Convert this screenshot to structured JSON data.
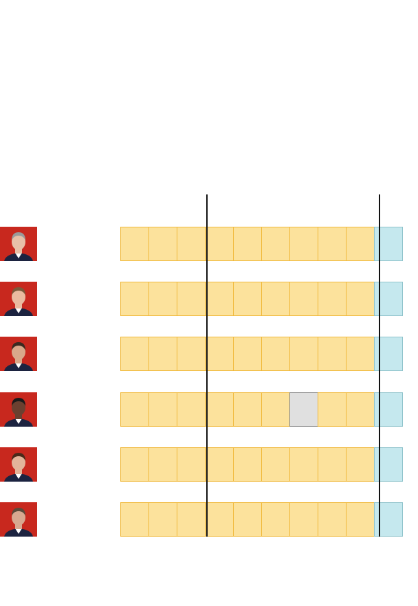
{
  "colors": {
    "avatar_bg": "#c8281e",
    "yes": {
      "fill": "#fce29c",
      "border": "#f0b83a"
    },
    "absent": {
      "fill": "#e0e0e0",
      "border": "#888888"
    },
    "other": {
      "fill": "#c5e8ee",
      "border": "#8fc3cb"
    }
  },
  "chart_data": {
    "type": "table",
    "rows": [
      {
        "cells": [
          "yes",
          "yes",
          "yes",
          "yes",
          "yes",
          "yes",
          "yes",
          "yes",
          "yes",
          "other"
        ]
      },
      {
        "cells": [
          "yes",
          "yes",
          "yes",
          "yes",
          "yes",
          "yes",
          "yes",
          "yes",
          "yes",
          "other"
        ]
      },
      {
        "cells": [
          "yes",
          "yes",
          "yes",
          "yes",
          "yes",
          "yes",
          "yes",
          "yes",
          "yes",
          "other"
        ]
      },
      {
        "cells": [
          "yes",
          "yes",
          "yes",
          "yes",
          "yes",
          "yes",
          "absent",
          "yes",
          "yes",
          "other"
        ]
      },
      {
        "cells": [
          "yes",
          "yes",
          "yes",
          "yes",
          "yes",
          "yes",
          "yes",
          "yes",
          "yes",
          "other"
        ]
      },
      {
        "cells": [
          "yes",
          "yes",
          "yes",
          "yes",
          "yes",
          "yes",
          "yes",
          "yes",
          "yes",
          "other"
        ]
      }
    ],
    "dividers_after_cell": [
      3,
      9
    ]
  }
}
